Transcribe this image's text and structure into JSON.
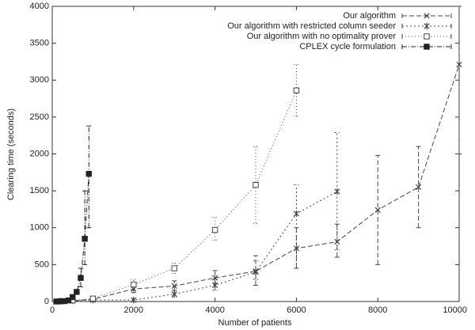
{
  "chart_data": {
    "type": "line",
    "xlabel": "Number of patients",
    "ylabel": "Clearing time (seconds)",
    "xlim": [
      0,
      10000
    ],
    "xticks": [
      0,
      2000,
      4000,
      6000,
      8000,
      10000
    ],
    "ylim": [
      0,
      4000
    ],
    "yticks": [
      0,
      500,
      1000,
      1500,
      2000,
      2500,
      3000,
      3500,
      4000
    ],
    "legend": "upper-right",
    "series": [
      {
        "name": "Our algorithm",
        "color": "#444444",
        "dash": "6,3",
        "marker": "x",
        "x": [
          200,
          500,
          1000,
          2000,
          3000,
          4000,
          5000,
          6000,
          7000,
          8000,
          9000,
          10000
        ],
        "values": [
          5,
          10,
          30,
          170,
          210,
          320,
          410,
          720,
          810,
          1240,
          1550,
          3210
        ],
        "error_low": [
          null,
          null,
          null,
          120,
          150,
          250,
          220,
          450,
          600,
          500,
          1000,
          2000
        ],
        "error_high": [
          null,
          null,
          null,
          230,
          280,
          420,
          620,
          1000,
          1050,
          1980,
          2100,
          4000
        ]
      },
      {
        "name": "Our algorithm with restricted column seeder",
        "color": "#444444",
        "dash": "2,3",
        "marker": "star",
        "x": [
          200,
          500,
          1000,
          2000,
          3000,
          4000,
          5000,
          6000,
          7000
        ],
        "values": [
          5,
          10,
          20,
          20,
          100,
          220,
          400,
          1190,
          1490
        ],
        "error_low": [
          null,
          null,
          null,
          null,
          60,
          150,
          300,
          450,
          700
        ],
        "error_high": [
          null,
          null,
          null,
          null,
          150,
          300,
          550,
          1580,
          2290
        ]
      },
      {
        "name": "Our algorithm with no optimality prover",
        "color": "#444444",
        "dash": "1,3",
        "marker": "square",
        "x": [
          200,
          500,
          1000,
          2000,
          3000,
          4000,
          5000,
          6000
        ],
        "values": [
          5,
          15,
          40,
          230,
          450,
          970,
          1580,
          2860
        ],
        "error_low": [
          null,
          null,
          null,
          150,
          380,
          830,
          1060,
          2510
        ],
        "error_high": [
          null,
          null,
          null,
          300,
          520,
          1140,
          2100,
          3210
        ]
      },
      {
        "name": "CPLEX cycle formulation",
        "color": "#222222",
        "dash": "6,2,1,2",
        "marker": "filled-square",
        "x": [
          100,
          200,
          300,
          400,
          500,
          600,
          700,
          800,
          900
        ],
        "values": [
          0,
          2,
          5,
          15,
          60,
          130,
          320,
          850,
          1730
        ],
        "error_low": [
          null,
          null,
          null,
          null,
          null,
          null,
          200,
          500,
          1000
        ],
        "error_high": [
          null,
          null,
          null,
          null,
          null,
          null,
          450,
          1500,
          2380
        ]
      }
    ]
  }
}
